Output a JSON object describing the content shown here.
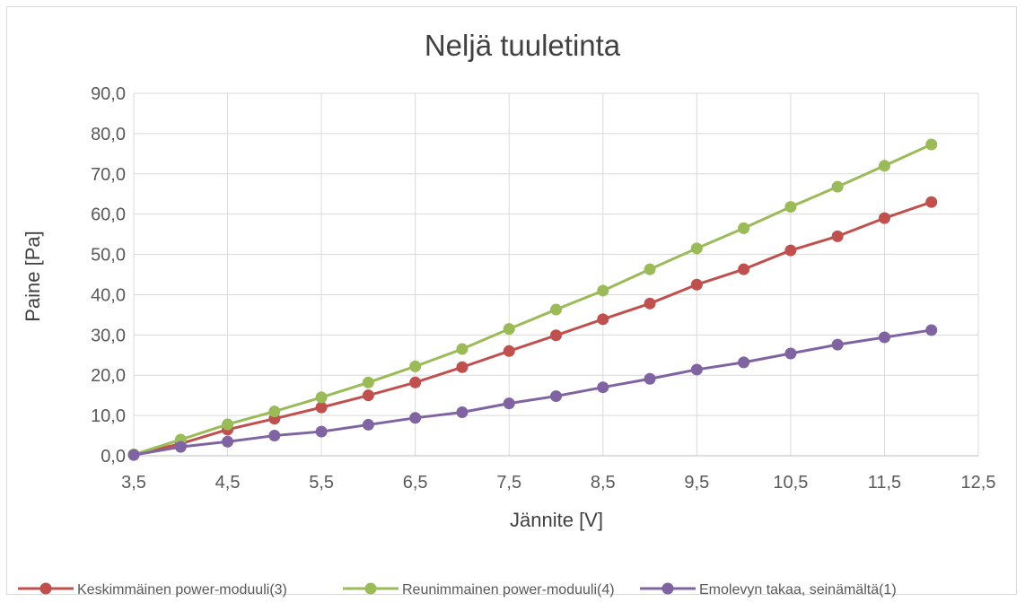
{
  "chart_data": {
    "type": "line",
    "title": "Neljä tuuletinta",
    "xlabel": "Jännite [V]",
    "ylabel": "Paine [Pa]",
    "xlim": [
      3.5,
      12.5
    ],
    "ylim": [
      0,
      90
    ],
    "xticks": [
      3.5,
      4.5,
      5.5,
      6.5,
      7.5,
      8.5,
      9.5,
      10.5,
      11.5,
      12.5
    ],
    "yticks": [
      0,
      10,
      20,
      30,
      40,
      50,
      60,
      70,
      80,
      90
    ],
    "xtick_labels": [
      "3,5",
      "4,5",
      "5,5",
      "6,5",
      "7,5",
      "8,5",
      "9,5",
      "10,5",
      "11,5",
      "12,5"
    ],
    "ytick_labels": [
      "0,0",
      "10,0",
      "20,0",
      "30,0",
      "40,0",
      "50,0",
      "60,0",
      "70,0",
      "80,0",
      "90,0"
    ],
    "grid": true,
    "legend_position": "bottom",
    "x": [
      3.5,
      4,
      4.5,
      5,
      5.5,
      6,
      6.5,
      7,
      7.5,
      8,
      8.5,
      9,
      9.5,
      10,
      10.5,
      11,
      11.5,
      12
    ],
    "series": [
      {
        "name": "Keskimmäinen power-moduuli(3)",
        "color": "#c0504d",
        "values": [
          0.3,
          3.0,
          6.5,
          9.2,
          12.0,
          15.0,
          18.2,
          22.0,
          26.0,
          29.9,
          33.9,
          37.8,
          42.5,
          46.3,
          51.0,
          54.5,
          59.0,
          63.0
        ]
      },
      {
        "name": "Reunimmainen power-moduuli(4)",
        "color": "#9bbb59",
        "values": [
          0.3,
          4.0,
          7.8,
          11.0,
          14.5,
          18.2,
          22.2,
          26.5,
          31.5,
          36.3,
          41.0,
          46.3,
          51.5,
          56.5,
          61.8,
          66.8,
          72.0,
          77.3
        ]
      },
      {
        "name": "Emolevyn takaa, seinämältä(1)",
        "color": "#8064a2",
        "values": [
          0.2,
          2.2,
          3.5,
          5.0,
          6.0,
          7.7,
          9.4,
          10.8,
          13.0,
          14.8,
          17.0,
          19.1,
          21.4,
          23.2,
          25.4,
          27.6,
          29.4,
          31.2
        ]
      }
    ]
  }
}
